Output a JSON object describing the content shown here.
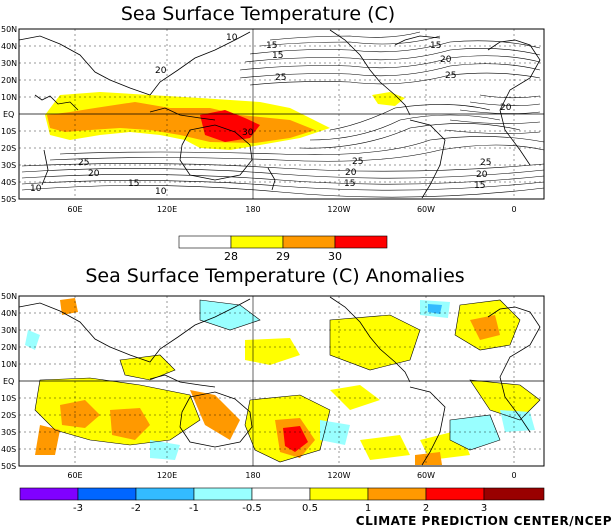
{
  "panels": [
    {
      "title": "Sea Surface Temperature (C)",
      "lat_labels": [
        "50N",
        "40N",
        "30N",
        "20N",
        "10N",
        "EQ",
        "10S",
        "20S",
        "30S",
        "40S",
        "50S"
      ],
      "lon_labels": [
        "60E",
        "120E",
        "180",
        "120W",
        "60W",
        "0"
      ],
      "contour_labels": [
        "10",
        "15",
        "20",
        "25",
        "30",
        "25",
        "20",
        "15",
        "10",
        "15",
        "20",
        "25",
        "20",
        "15",
        "25",
        "20",
        "15",
        "25",
        "20",
        "15",
        "10"
      ],
      "legend": {
        "colors": [
          "#ffffff",
          "#ffff00",
          "#ff9900",
          "#ff0000"
        ],
        "labels": [
          "28",
          "29",
          "30"
        ]
      }
    },
    {
      "title": "Sea Surface Temperature (C) Anomalies",
      "lat_labels": [
        "50N",
        "40N",
        "30N",
        "20N",
        "10N",
        "EQ",
        "10S",
        "20S",
        "30S",
        "40S",
        "50S"
      ],
      "lon_labels": [
        "60E",
        "120E",
        "180",
        "120W",
        "60W",
        "0"
      ],
      "legend": {
        "colors": [
          "#8000ff",
          "#0066ff",
          "#33bbff",
          "#99ffff",
          "#ffffff",
          "#ffff00",
          "#ff9900",
          "#ff0000",
          "#990000"
        ],
        "labels": [
          "-3",
          "-2",
          "-1",
          "-0.5",
          "0.5",
          "1",
          "2",
          "3"
        ]
      }
    }
  ],
  "colors": {
    "sst_28": "#ffff00",
    "sst_29": "#ff9900",
    "sst_30": "#ff0000",
    "anom_pos1": "#ffff00",
    "anom_pos2": "#ff9900",
    "anom_pos3": "#ff0000",
    "anom_neg1": "#99ffff",
    "anom_neg2": "#33bbff",
    "anom_neg3": "#0066ff"
  },
  "credit": "CLIMATE PREDICTION CENTER/NCEP"
}
